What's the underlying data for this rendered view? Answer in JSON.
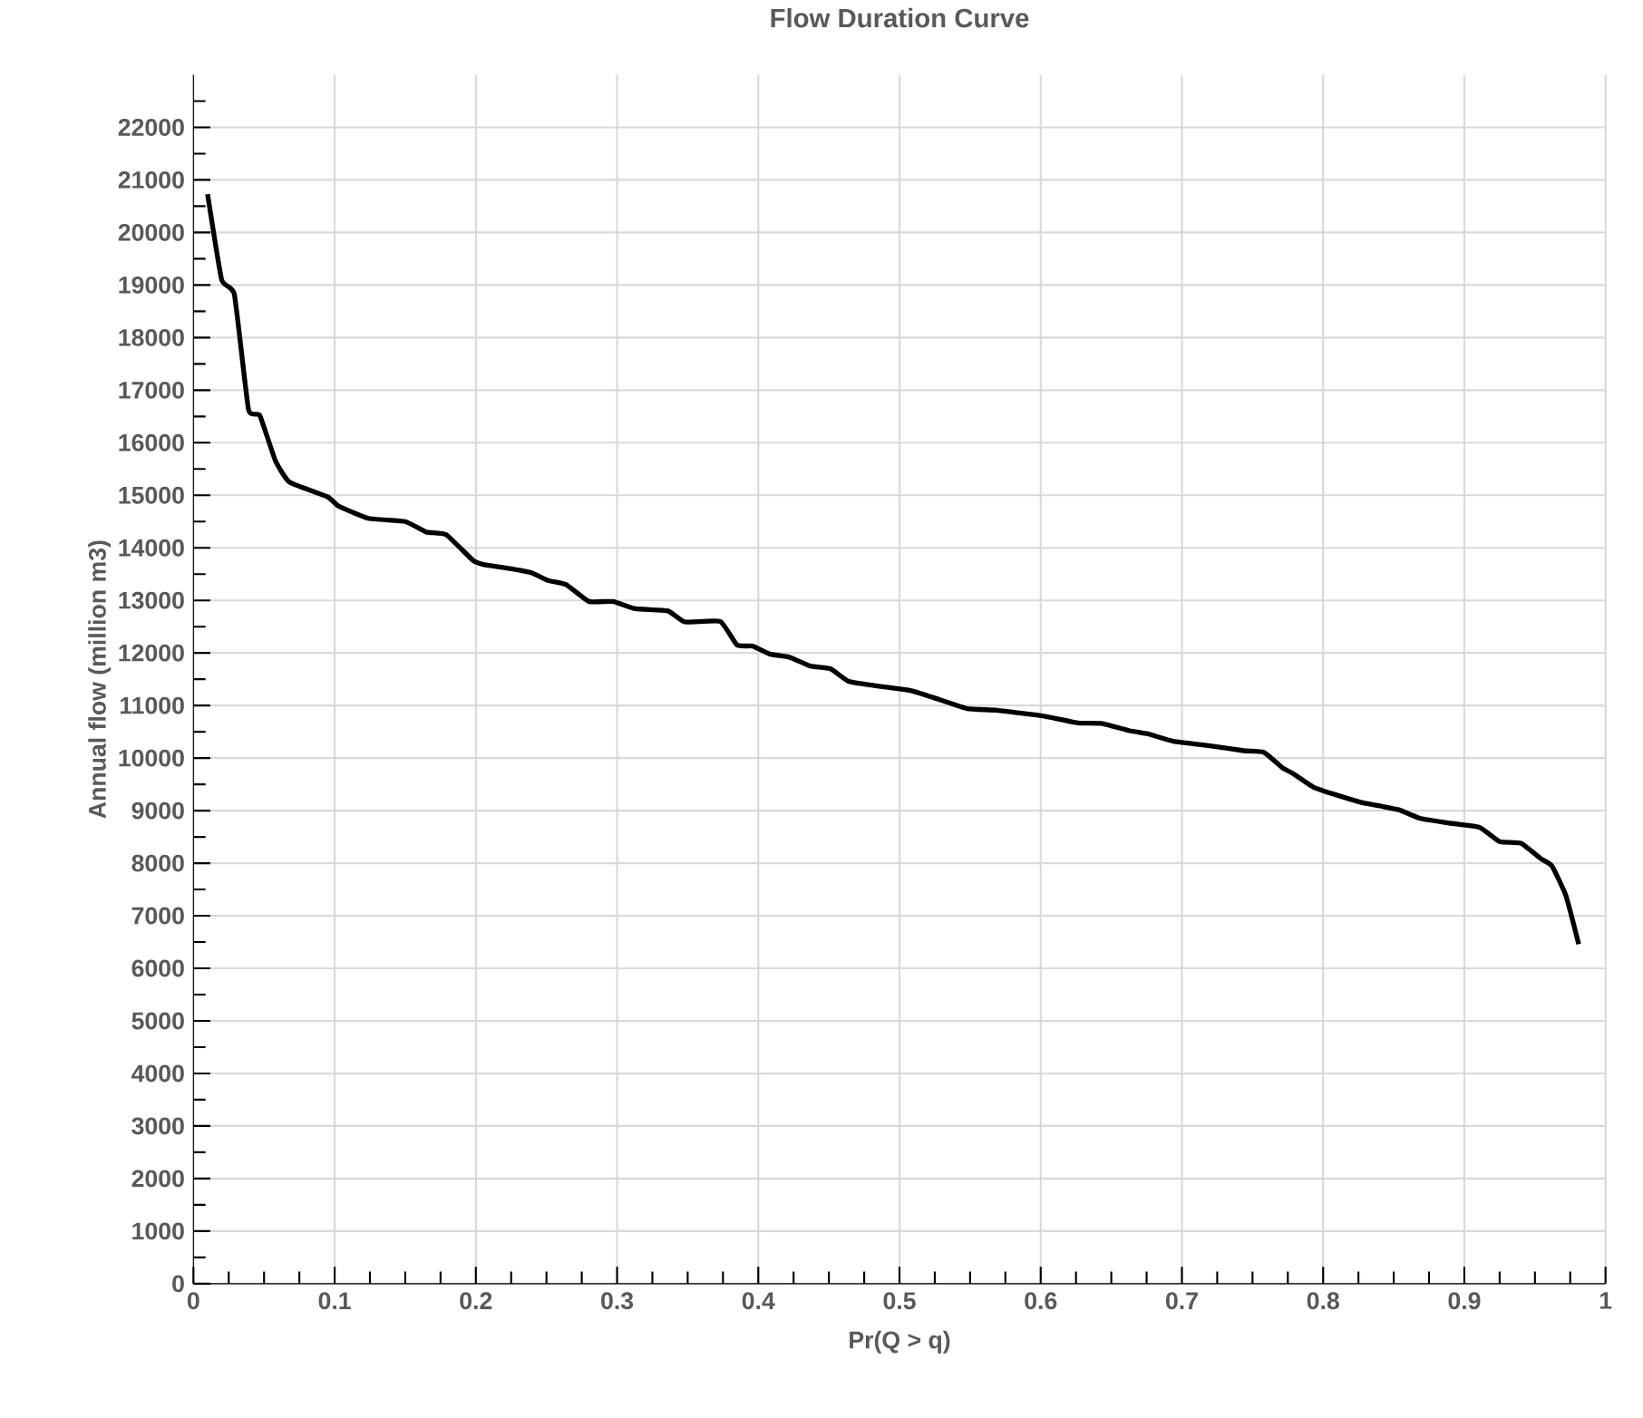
{
  "chart_data": {
    "type": "line",
    "title": "Flow Duration Curve",
    "xlabel": "Pr(Q > q)",
    "ylabel": "Annual flow  (million m3)",
    "x": [
      0.01,
      0.02,
      0.029,
      0.039,
      0.047,
      0.058,
      0.068,
      0.095,
      0.103,
      0.124,
      0.15,
      0.165,
      0.179,
      0.198,
      0.206,
      0.223,
      0.239,
      0.251,
      0.264,
      0.28,
      0.297,
      0.313,
      0.336,
      0.348,
      0.373,
      0.385,
      0.396,
      0.408,
      0.422,
      0.437,
      0.451,
      0.464,
      0.482,
      0.507,
      0.523,
      0.548,
      0.569,
      0.604,
      0.626,
      0.643,
      0.663,
      0.676,
      0.694,
      0.721,
      0.744,
      0.758,
      0.771,
      0.779,
      0.793,
      0.808,
      0.828,
      0.853,
      0.869,
      0.89,
      0.911,
      0.925,
      0.94,
      0.954,
      0.962,
      0.972,
      0.981
    ],
    "values": [
      20730,
      19100,
      18820,
      16630,
      16520,
      15660,
      15250,
      14970,
      14790,
      14560,
      14500,
      14300,
      14250,
      13760,
      13680,
      13610,
      13530,
      13380,
      13300,
      12980,
      12980,
      12840,
      12800,
      12590,
      12600,
      12150,
      12130,
      11980,
      11920,
      11750,
      11700,
      11460,
      11380,
      11290,
      11160,
      10940,
      10910,
      10790,
      10670,
      10660,
      10520,
      10460,
      10320,
      10230,
      10140,
      10110,
      9820,
      9700,
      9450,
      9310,
      9150,
      9020,
      8850,
      8760,
      8680,
      8410,
      8380,
      8090,
      7950,
      7380,
      6460
    ],
    "color": "#000000",
    "line_style": "solid",
    "grid": true,
    "xlim": [
      0,
      1
    ],
    "ylim": [
      0,
      23000
    ],
    "xticks": [
      0,
      {
        "value": 0.025,
        "label": null
      },
      {
        "value": 0.05,
        "label": null
      },
      {
        "value": 0.075,
        "label": null
      },
      0.1,
      {
        "value": 0.125,
        "label": null
      },
      {
        "value": 0.15,
        "label": null
      },
      {
        "value": 0.175,
        "label": null
      },
      0.2,
      {
        "value": 0.225,
        "label": null
      },
      {
        "value": 0.25,
        "label": null
      },
      {
        "value": 0.275,
        "label": null
      },
      0.3,
      {
        "value": 0.325,
        "label": null
      },
      {
        "value": 0.35,
        "label": null
      },
      {
        "value": 0.375,
        "label": null
      },
      0.4,
      {
        "value": 0.425,
        "label": null
      },
      {
        "value": 0.45,
        "label": null
      },
      {
        "value": 0.475,
        "label": null
      },
      0.5,
      {
        "value": 0.525,
        "label": null
      },
      {
        "value": 0.55,
        "label": null
      },
      {
        "value": 0.575,
        "label": null
      },
      0.6,
      {
        "value": 0.625,
        "label": null
      },
      {
        "value": 0.65,
        "label": null
      },
      {
        "value": 0.675,
        "label": null
      },
      0.7,
      {
        "value": 0.725,
        "label": null
      },
      {
        "value": 0.75,
        "label": null
      },
      {
        "value": 0.775,
        "label": null
      },
      0.8,
      {
        "value": 0.825,
        "label": null
      },
      {
        "value": 0.85,
        "label": null
      },
      {
        "value": 0.875,
        "label": null
      },
      0.9,
      {
        "value": 0.925,
        "label": null
      },
      {
        "value": 0.95,
        "label": null
      },
      {
        "value": 0.975,
        "label": null
      },
      1
    ],
    "yticks": [
      0,
      {
        "value": 500,
        "label": null
      },
      1000,
      {
        "value": 1500,
        "label": null
      },
      2000,
      {
        "value": 2500,
        "label": null
      },
      3000,
      {
        "value": 3500,
        "label": null
      },
      4000,
      {
        "value": 4500,
        "label": null
      },
      5000,
      {
        "value": 5500,
        "label": null
      },
      6000,
      {
        "value": 6500,
        "label": null
      },
      7000,
      {
        "value": 7500,
        "label": null
      },
      8000,
      {
        "value": 8500,
        "label": null
      },
      9000,
      {
        "value": 9500,
        "label": null
      },
      10000,
      {
        "value": 10500,
        "label": null
      },
      11000,
      {
        "value": 11500,
        "label": null
      },
      12000,
      {
        "value": 12500,
        "label": null
      },
      13000,
      {
        "value": 13500,
        "label": null
      },
      14000,
      {
        "value": 14500,
        "label": null
      },
      15000,
      {
        "value": 15500,
        "label": null
      },
      16000,
      {
        "value": 16500,
        "label": null
      },
      17000,
      {
        "value": 17500,
        "label": null
      },
      18000,
      {
        "value": 18500,
        "label": null
      },
      19000,
      {
        "value": 19500,
        "label": null
      },
      20000,
      {
        "value": 20500,
        "label": null
      },
      21000,
      {
        "value": 21500,
        "label": null
      },
      22000,
      {
        "value": 22500,
        "label": null
      }
    ]
  }
}
